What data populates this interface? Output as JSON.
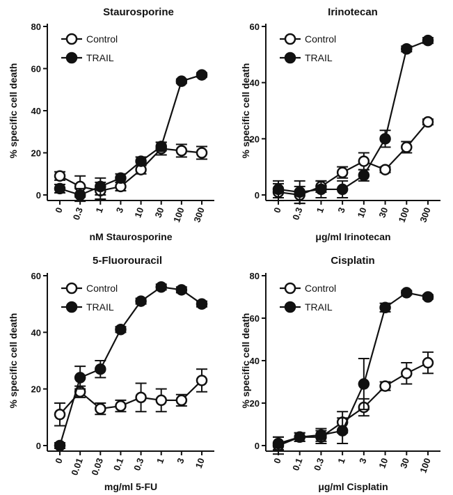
{
  "chart_data": [
    {
      "type": "line",
      "title": "Staurosporine",
      "xlabel": "nM Staurosporine",
      "ylabel": "% specific cell death",
      "categories": [
        "0",
        "0.3",
        "1",
        "3",
        "10",
        "30",
        "100",
        "300"
      ],
      "ylim": [
        0,
        80
      ],
      "yticks": [
        "0",
        "20",
        "40",
        "60",
        "80"
      ],
      "legend_position": "top-left",
      "grid": false,
      "series": [
        {
          "name": "Control",
          "marker": "open-circle",
          "values": [
            9,
            4,
            2,
            4,
            12,
            22,
            21,
            20
          ],
          "errors": [
            2,
            5,
            4,
            2,
            2,
            3,
            3,
            3
          ]
        },
        {
          "name": "TRAIL",
          "marker": "filled-circle",
          "values": [
            3,
            0,
            4,
            8,
            16,
            23,
            54,
            57
          ],
          "errors": [
            2,
            3,
            4,
            2,
            2,
            2,
            1,
            1
          ]
        }
      ]
    },
    {
      "type": "line",
      "title": "Irinotecan",
      "xlabel": "μg/ml Irinotecan",
      "ylabel": "% specific cell death",
      "categories": [
        "0",
        "0.3",
        "1",
        "3",
        "10",
        "30",
        "100",
        "300"
      ],
      "ylim": [
        0,
        60
      ],
      "yticks": [
        "0",
        "20",
        "40",
        "60"
      ],
      "legend_position": "top-left",
      "grid": false,
      "series": [
        {
          "name": "Control",
          "marker": "open-circle",
          "values": [
            1,
            0,
            3,
            8,
            12,
            9,
            17,
            26
          ],
          "errors": [
            3,
            3,
            2,
            2,
            3,
            1,
            2,
            1
          ]
        },
        {
          "name": "TRAIL",
          "marker": "filled-circle",
          "values": [
            2,
            1,
            2,
            2,
            7,
            20,
            52,
            55
          ],
          "errors": [
            3,
            4,
            3,
            3,
            2,
            3,
            1,
            1
          ]
        }
      ]
    },
    {
      "type": "line",
      "title": "5-Fluorouracil",
      "xlabel": "mg/ml 5-FU",
      "ylabel": "% specific cell death",
      "categories": [
        "0",
        "0.01",
        "0.03",
        "0.1",
        "0.3",
        "1",
        "3",
        "10"
      ],
      "ylim": [
        0,
        60
      ],
      "yticks": [
        "0",
        "20",
        "40",
        "60"
      ],
      "legend_position": "top-left",
      "grid": false,
      "series": [
        {
          "name": "Control",
          "marker": "open-circle",
          "values": [
            11,
            19,
            13,
            14,
            17,
            16,
            16,
            23
          ],
          "errors": [
            4,
            2,
            2,
            2,
            5,
            4,
            2,
            4
          ]
        },
        {
          "name": "TRAIL",
          "marker": "filled-circle",
          "values": [
            0,
            24,
            27,
            41,
            51,
            56,
            55,
            50
          ],
          "errors": [
            1,
            4,
            3,
            1,
            1,
            1,
            1,
            1
          ]
        }
      ]
    },
    {
      "type": "line",
      "title": "Cisplatin",
      "xlabel": "μg/ml Cisplatin",
      "ylabel": "% specific cell death",
      "categories": [
        "0",
        "0.1",
        "0.3",
        "1",
        "3",
        "10",
        "30",
        "100"
      ],
      "ylim": [
        0,
        80
      ],
      "yticks": [
        "0",
        "20",
        "40",
        "60",
        "80"
      ],
      "legend_position": "top-left",
      "grid": false,
      "series": [
        {
          "name": "Control",
          "marker": "open-circle",
          "values": [
            0,
            4,
            4,
            11,
            18,
            28,
            34,
            39
          ],
          "errors": [
            4,
            2,
            3,
            5,
            4,
            2,
            5,
            5
          ]
        },
        {
          "name": "TRAIL",
          "marker": "filled-circle",
          "values": [
            1,
            4,
            5,
            7,
            29,
            65,
            72,
            70
          ],
          "errors": [
            3,
            2,
            3,
            6,
            12,
            2,
            1,
            1
          ]
        }
      ]
    }
  ]
}
